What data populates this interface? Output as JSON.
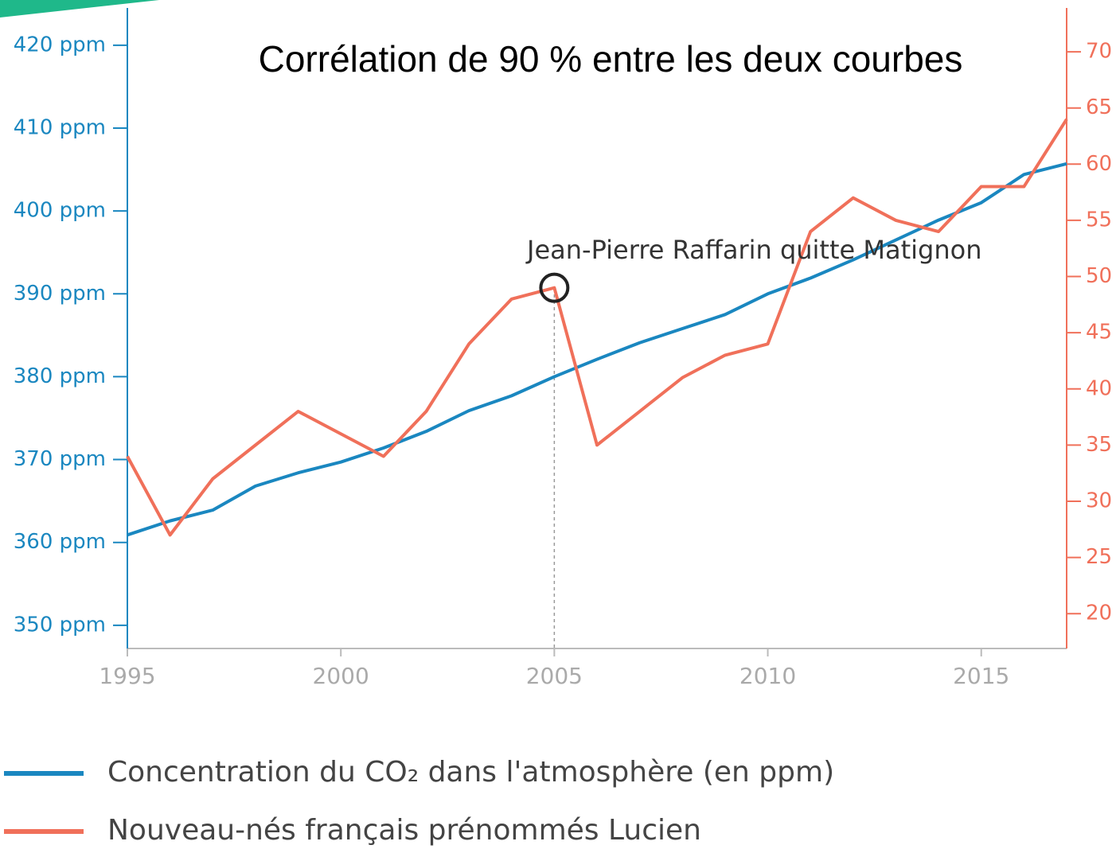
{
  "chart_data": {
    "type": "line",
    "title": "Corrélation de 90 % entre les deux courbes",
    "x": [
      1995,
      1996,
      1997,
      1998,
      1999,
      2000,
      2001,
      2002,
      2003,
      2004,
      2005,
      2006,
      2007,
      2008,
      2009,
      2010,
      2011,
      2012,
      2013,
      2014,
      2015,
      2016,
      2017
    ],
    "series": [
      {
        "name": "Concentration du CO₂ dans l'atmosphère (en ppm)",
        "color": "#1a87c0",
        "axis": "y",
        "values": [
          360.9,
          362.6,
          363.9,
          366.8,
          368.4,
          369.7,
          371.4,
          373.4,
          375.9,
          377.7,
          380.0,
          382.1,
          384.1,
          385.8,
          387.5,
          390.0,
          391.9,
          394.1,
          396.5,
          398.9,
          401.0,
          404.4,
          405.7
        ]
      },
      {
        "name": "Nouveau-nés français prénommés Lucien",
        "color": "#f0705a",
        "axis": "y2",
        "values": [
          34,
          27,
          32,
          35,
          38,
          36,
          34,
          38,
          44,
          48,
          49,
          35,
          38,
          41,
          43,
          44,
          54,
          57,
          55,
          54,
          58,
          58,
          64
        ]
      }
    ],
    "xlim": [
      1995,
      2017
    ],
    "xticks": [
      1995,
      2000,
      2005,
      2010,
      2015
    ],
    "ylim": [
      347.2,
      424.5
    ],
    "yticks": [
      {
        "value": 350,
        "label": "350 ppm"
      },
      {
        "value": 360,
        "label": "360 ppm"
      },
      {
        "value": 370,
        "label": "370 ppm"
      },
      {
        "value": 380,
        "label": "380 ppm"
      },
      {
        "value": 390,
        "label": "390 ppm"
      },
      {
        "value": 400,
        "label": "400 ppm"
      },
      {
        "value": 410,
        "label": "410 ppm"
      },
      {
        "value": 420,
        "label": "420 ppm"
      }
    ],
    "y2lim": [
      16.9,
      73.9
    ],
    "y2ticks": [
      20,
      25,
      30,
      35,
      40,
      45,
      50,
      55,
      60,
      65,
      70
    ],
    "annotation": {
      "text": "Jean-Pierre Raffarin quitte Matignon",
      "x": 2005
    }
  }
}
